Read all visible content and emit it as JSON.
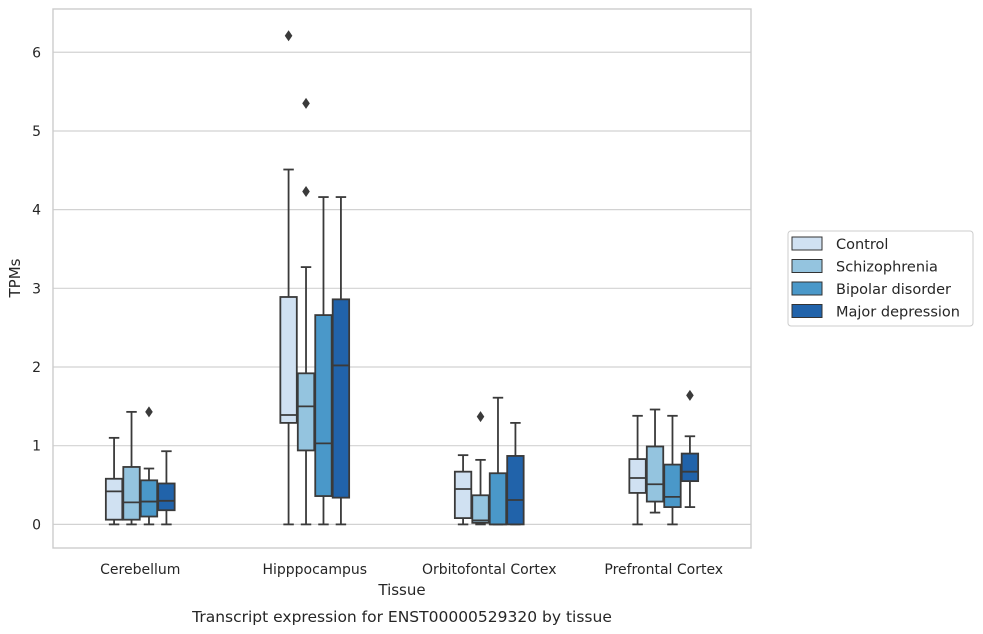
{
  "chart_data": {
    "type": "box",
    "title": "",
    "caption": "Transcript expression for ENST00000529320 by tissue",
    "xlabel": "Tissue",
    "ylabel": "TPMs",
    "ylim": [
      -0.3,
      6.55
    ],
    "yticks": [
      "0",
      "1",
      "2",
      "3",
      "4",
      "5",
      "6"
    ],
    "grid": "horizontal",
    "legend_position": "right-center",
    "categories": [
      "Cerebellum",
      "Hipppocampus",
      "Orbitofontal Cortex",
      "Prefrontal Cortex"
    ],
    "series": [
      {
        "name": "Control",
        "color": "#d0e1f2",
        "boxes": [
          {
            "min": 0.0,
            "q1": 0.06,
            "median": 0.42,
            "q3": 0.58,
            "max": 1.1,
            "outliers": []
          },
          {
            "min": 0.0,
            "q1": 1.29,
            "median": 1.39,
            "q3": 2.89,
            "max": 4.51,
            "outliers": [
              6.21
            ]
          },
          {
            "min": 0.0,
            "q1": 0.08,
            "median": 0.45,
            "q3": 0.67,
            "max": 0.88,
            "outliers": []
          },
          {
            "min": 0.0,
            "q1": 0.4,
            "median": 0.59,
            "q3": 0.83,
            "max": 1.38,
            "outliers": []
          }
        ]
      },
      {
        "name": "Schizophrenia",
        "color": "#94c4df",
        "boxes": [
          {
            "min": 0.0,
            "q1": 0.06,
            "median": 0.28,
            "q3": 0.73,
            "max": 1.43,
            "outliers": []
          },
          {
            "min": 0.0,
            "q1": 0.94,
            "median": 1.5,
            "q3": 1.92,
            "max": 3.27,
            "outliers": [
              5.35,
              4.23
            ]
          },
          {
            "min": 0.0,
            "q1": 0.02,
            "median": 0.05,
            "q3": 0.37,
            "max": 0.82,
            "outliers": [
              1.37
            ]
          },
          {
            "min": 0.15,
            "q1": 0.29,
            "median": 0.51,
            "q3": 0.99,
            "max": 1.46,
            "outliers": []
          }
        ]
      },
      {
        "name": "Bipolar disorder",
        "color": "#4a98c9",
        "boxes": [
          {
            "min": 0.0,
            "q1": 0.1,
            "median": 0.29,
            "q3": 0.56,
            "max": 0.71,
            "outliers": [
              1.43
            ]
          },
          {
            "min": 0.0,
            "q1": 0.36,
            "median": 1.03,
            "q3": 2.66,
            "max": 4.16,
            "outliers": []
          },
          {
            "min": 0.0,
            "q1": 0.0,
            "median": 0.0,
            "q3": 0.65,
            "max": 1.61,
            "outliers": []
          },
          {
            "min": 0.0,
            "q1": 0.22,
            "median": 0.35,
            "q3": 0.76,
            "max": 1.38,
            "outliers": []
          }
        ]
      },
      {
        "name": "Major depression",
        "color": "#2163aa",
        "boxes": [
          {
            "min": 0.0,
            "q1": 0.18,
            "median": 0.3,
            "q3": 0.52,
            "max": 0.93,
            "outliers": []
          },
          {
            "min": 0.0,
            "q1": 0.34,
            "median": 2.02,
            "q3": 2.86,
            "max": 4.16,
            "outliers": []
          },
          {
            "min": 0.0,
            "q1": 0.0,
            "median": 0.31,
            "q3": 0.87,
            "max": 1.29,
            "outliers": []
          },
          {
            "min": 0.22,
            "q1": 0.55,
            "median": 0.67,
            "q3": 0.9,
            "max": 1.12,
            "outliers": [
              1.64
            ]
          }
        ]
      }
    ]
  }
}
